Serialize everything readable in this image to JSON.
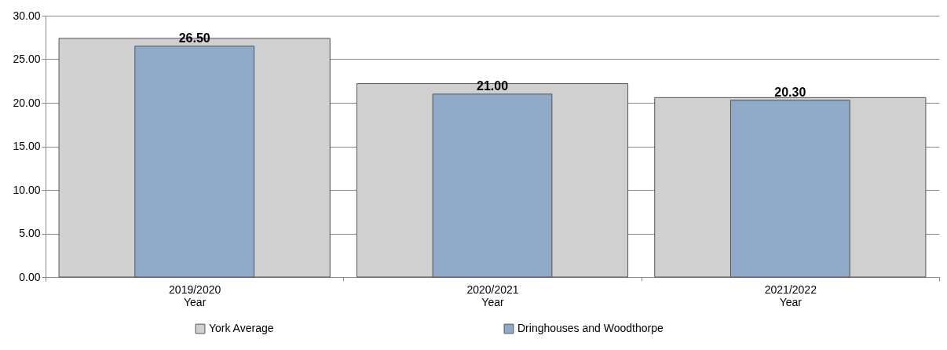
{
  "chart_data": {
    "type": "bar",
    "categories": [
      "2019/2020 Year",
      "2020/2021 Year",
      "2021/2022 Year"
    ],
    "series": [
      {
        "name": "York Average",
        "color": "#d0d0d0",
        "values": [
          27.4,
          22.2,
          20.6
        ]
      },
      {
        "name": "Dringhouses and Woodthorpe",
        "color": "#8eaac8",
        "values": [
          26.5,
          21.0,
          20.3
        ],
        "value_labels": [
          "26.50",
          "21.00",
          "20.30"
        ]
      }
    ],
    "ylim": [
      0,
      30
    ],
    "yticks": [
      {
        "value": 0,
        "label": "0.00"
      },
      {
        "value": 5,
        "label": "5.00"
      },
      {
        "value": 10,
        "label": "10.00"
      },
      {
        "value": 15,
        "label": "15.00"
      },
      {
        "value": 20,
        "label": "20.00"
      },
      {
        "value": 25,
        "label": "25.00"
      },
      {
        "value": 30,
        "label": "30.00"
      }
    ],
    "grid": "y",
    "legend": "bottom"
  }
}
